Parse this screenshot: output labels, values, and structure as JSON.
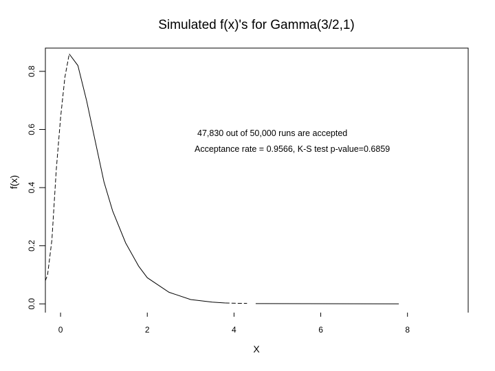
{
  "chart_data": {
    "type": "line",
    "title": "Simulated f(x)'s for Gamma(3/2,1)",
    "xlabel": "X",
    "ylabel": "f(x)",
    "xlim": [
      -0.35,
      9.4
    ],
    "ylim": [
      -0.03,
      0.88
    ],
    "xticks": [
      "0",
      "2",
      "4",
      "6",
      "8"
    ],
    "yticks": [
      "0.0",
      "0.2",
      "0.4",
      "0.6",
      "0.8"
    ],
    "annotations": [
      "47,830 out of 50,000 runs are accepted",
      "Acceptance rate = 0.9566, K-S test p-value=0.6859"
    ],
    "series": [
      {
        "style": "dashed",
        "x": [
          -0.35,
          -0.3,
          -0.2,
          -0.1,
          0.0,
          0.1,
          0.2
        ],
        "y": [
          0.08,
          0.1,
          0.22,
          0.46,
          0.64,
          0.78,
          0.86
        ]
      },
      {
        "style": "solid",
        "x": [
          0.2,
          0.4,
          0.6,
          0.8,
          1.0,
          1.2,
          1.5,
          1.8,
          2.0,
          2.5,
          3.0,
          3.5,
          3.8
        ],
        "y": [
          0.86,
          0.82,
          0.7,
          0.56,
          0.42,
          0.32,
          0.21,
          0.13,
          0.09,
          0.04,
          0.015,
          0.006,
          0.003
        ]
      },
      {
        "style": "dashed",
        "x": [
          3.8,
          4.1,
          4.3
        ],
        "y": [
          0.003,
          0.002,
          0.002
        ]
      },
      {
        "style": "solid",
        "x": [
          4.5,
          7.8
        ],
        "y": [
          0.001,
          0.0
        ]
      }
    ]
  }
}
